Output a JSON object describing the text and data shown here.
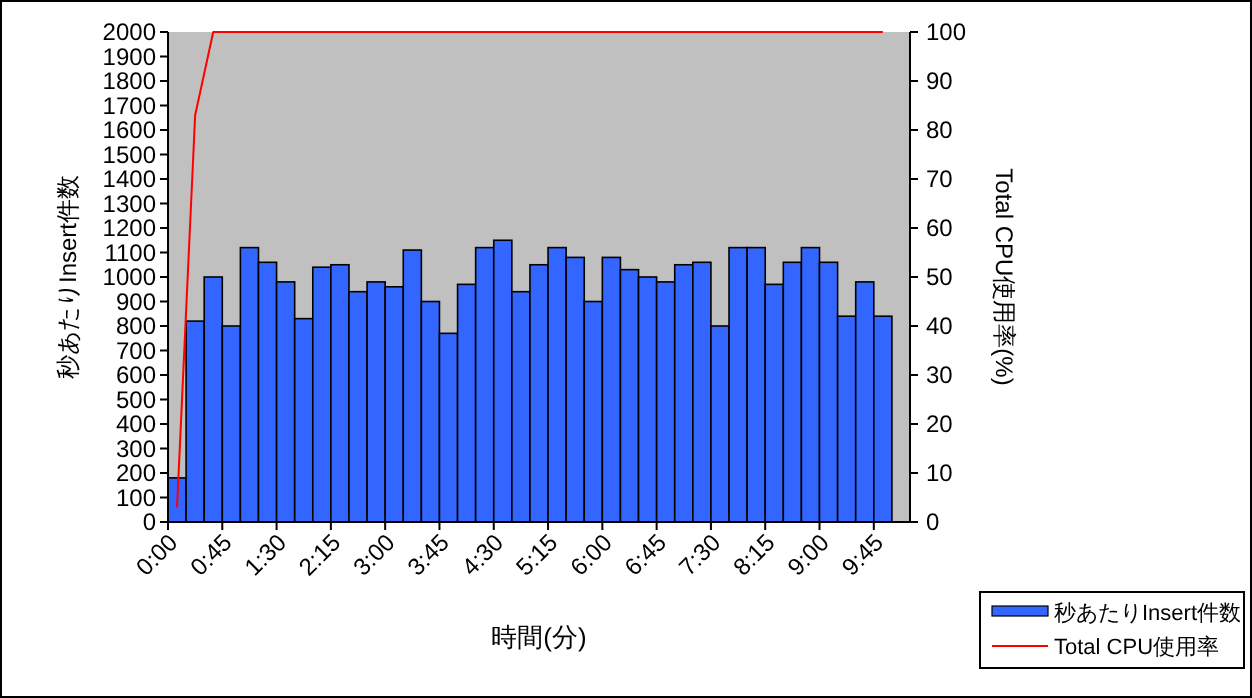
{
  "chart_data": {
    "type": "bar",
    "xlabel": "時間(分)",
    "ylabel": "秒あたりInsert件数",
    "y2label": "Total CPU使用率(%)",
    "categories": [
      "0:00",
      null,
      null,
      "0:45",
      null,
      null,
      "1:30",
      null,
      null,
      "2:15",
      null,
      null,
      "3:00",
      null,
      null,
      "3:45",
      null,
      null,
      "4:30",
      null,
      null,
      "5:15",
      null,
      null,
      "6:00",
      null,
      null,
      "6:45",
      null,
      null,
      "7:30",
      null,
      null,
      "8:15",
      null,
      null,
      "9:00",
      null,
      null,
      "9:45",
      null
    ],
    "series": [
      {
        "name": "秒あたりInsert件数",
        "color": "#3366ff",
        "values": [
          180,
          820,
          1000,
          800,
          1120,
          1060,
          980,
          830,
          1040,
          1050,
          940,
          980,
          960,
          1110,
          900,
          770,
          970,
          1120,
          1150,
          940,
          1050,
          1120,
          1080,
          900,
          1080,
          1030,
          1000,
          980,
          1050,
          1060,
          800,
          1120,
          1120,
          970,
          1060,
          1120,
          1060,
          840,
          980,
          840,
          null
        ]
      },
      {
        "name": "Total CPU使用率",
        "type": "line",
        "axis": "y2",
        "color": "#ff0000",
        "values": [
          3,
          83,
          100,
          100,
          100,
          100,
          100,
          100,
          100,
          100,
          100,
          100,
          100,
          100,
          100,
          100,
          100,
          100,
          100,
          100,
          100,
          100,
          100,
          100,
          100,
          100,
          100,
          100,
          100,
          100,
          100,
          100,
          100,
          100,
          100,
          100,
          100,
          100,
          100,
          100,
          null
        ]
      }
    ],
    "ylim": [
      0,
      2000
    ],
    "yticks": [
      0,
      100,
      200,
      300,
      400,
      500,
      600,
      700,
      800,
      900,
      1000,
      1100,
      1200,
      1300,
      1400,
      1500,
      1600,
      1700,
      1800,
      1900,
      2000
    ],
    "y2lim": [
      0,
      100
    ],
    "y2ticks": [
      0,
      10,
      20,
      30,
      40,
      50,
      60,
      70,
      80,
      90,
      100
    ],
    "grid": false,
    "legend": "bottom right",
    "marker": "none",
    "line_style": "solid"
  }
}
